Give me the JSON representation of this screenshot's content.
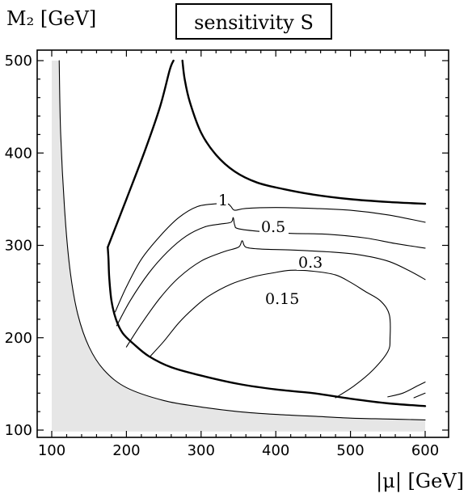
{
  "chart_data": {
    "type": "contour",
    "title": "sensitivity S",
    "ylabel": "M₂ [GeV]",
    "xlabel": "|μ| [GeV]",
    "xlim": [
      100,
      600
    ],
    "ylim": [
      100,
      500
    ],
    "xticks": [
      "100",
      "200",
      "300",
      "400",
      "500",
      "600"
    ],
    "yticks": [
      "100",
      "200",
      "300",
      "400",
      "500"
    ],
    "x_tick_values": [
      100,
      200,
      300,
      400,
      500,
      600
    ],
    "y_tick_values": [
      100,
      200,
      300,
      400,
      500
    ],
    "contour_labels": [
      "1",
      "0.5",
      "0.3",
      "0.15"
    ],
    "excluded_region_color": "#e6e6e6",
    "series": [
      {
        "role": "kinematic-boundary",
        "style": "thin",
        "points": [
          [
            110,
            500
          ],
          [
            112,
            420
          ],
          [
            118,
            330
          ],
          [
            125,
            270
          ],
          [
            135,
            225
          ],
          [
            150,
            190
          ],
          [
            170,
            165
          ],
          [
            200,
            146
          ],
          [
            250,
            132
          ],
          [
            300,
            125
          ],
          [
            350,
            120
          ],
          [
            400,
            117
          ],
          [
            450,
            115
          ],
          [
            500,
            113
          ],
          [
            550,
            112
          ],
          [
            600,
            111
          ]
        ]
      },
      {
        "role": "region-boundary",
        "style": "thick",
        "points": [
          [
            175,
            298
          ],
          [
            176,
            285
          ],
          [
            177,
            265
          ],
          [
            180,
            240
          ],
          [
            186,
            220
          ],
          [
            195,
            205
          ],
          [
            210,
            193
          ],
          [
            230,
            180
          ],
          [
            260,
            168
          ],
          [
            300,
            159
          ],
          [
            350,
            150
          ],
          [
            400,
            144
          ],
          [
            450,
            140
          ],
          [
            500,
            134
          ],
          [
            550,
            129
          ],
          [
            600,
            126
          ]
        ]
      },
      {
        "role": "region-boundary",
        "style": "thick",
        "points": [
          [
            175,
            298
          ],
          [
            200,
            350
          ],
          [
            225,
            403
          ],
          [
            245,
            450
          ],
          [
            258,
            490
          ],
          [
            263,
            500
          ]
        ]
      },
      {
        "role": "region-boundary",
        "style": "thick",
        "points": [
          [
            275,
            500
          ],
          [
            278,
            480
          ],
          [
            285,
            455
          ],
          [
            300,
            422
          ],
          [
            320,
            398
          ],
          [
            345,
            380
          ],
          [
            375,
            368
          ],
          [
            410,
            361
          ],
          [
            450,
            355
          ],
          [
            500,
            350
          ],
          [
            550,
            347
          ],
          [
            600,
            345
          ]
        ]
      },
      {
        "role": "contour",
        "label": "1",
        "points": [
          [
            185,
            228
          ],
          [
            200,
            255
          ],
          [
            220,
            285
          ],
          [
            245,
            310
          ],
          [
            270,
            330
          ],
          [
            295,
            342
          ],
          [
            320,
            345
          ],
          [
            335,
            345
          ],
          [
            340,
            342
          ],
          [
            345,
            338
          ],
          [
            360,
            340
          ],
          [
            400,
            341
          ],
          [
            450,
            340
          ],
          [
            500,
            338
          ],
          [
            550,
            333
          ],
          [
            600,
            325
          ]
        ]
      },
      {
        "role": "contour",
        "label": "0.5",
        "points": [
          [
            187,
            213
          ],
          [
            205,
            240
          ],
          [
            230,
            270
          ],
          [
            255,
            293
          ],
          [
            280,
            310
          ],
          [
            305,
            320
          ],
          [
            325,
            323
          ],
          [
            340,
            325
          ],
          [
            343,
            330
          ],
          [
            345,
            322
          ],
          [
            350,
            318
          ],
          [
            380,
            315
          ],
          [
            420,
            313
          ],
          [
            470,
            312
          ],
          [
            520,
            308
          ],
          [
            560,
            302
          ],
          [
            600,
            297
          ]
        ]
      },
      {
        "role": "contour",
        "label": "0.3",
        "points": [
          [
            200,
            190
          ],
          [
            220,
            215
          ],
          [
            245,
            243
          ],
          [
            270,
            265
          ],
          [
            300,
            283
          ],
          [
            330,
            293
          ],
          [
            350,
            298
          ],
          [
            355,
            305
          ],
          [
            360,
            298
          ],
          [
            380,
            296
          ],
          [
            420,
            295
          ],
          [
            470,
            293
          ],
          [
            510,
            290
          ],
          [
            550,
            283
          ],
          [
            580,
            272
          ],
          [
            600,
            263
          ]
        ]
      },
      {
        "role": "contour",
        "label": "0.15",
        "points": [
          [
            232,
            180
          ],
          [
            250,
            196
          ],
          [
            270,
            216
          ],
          [
            290,
            232
          ],
          [
            310,
            245
          ],
          [
            340,
            258
          ],
          [
            370,
            266
          ],
          [
            395,
            270
          ],
          [
            420,
            273
          ],
          [
            450,
            272
          ],
          [
            480,
            268
          ],
          [
            500,
            260
          ],
          [
            520,
            250
          ],
          [
            540,
            240
          ],
          [
            552,
            225
          ],
          [
            553,
            200
          ],
          [
            550,
            185
          ],
          [
            530,
            165
          ],
          [
            505,
            148
          ],
          [
            480,
            135
          ]
        ]
      },
      {
        "role": "contour",
        "points": [
          [
            550,
            136
          ],
          [
            570,
            140
          ],
          [
            590,
            148
          ],
          [
            600,
            152
          ]
        ]
      },
      {
        "role": "contour",
        "points": [
          [
            585,
            135
          ],
          [
            600,
            140
          ]
        ]
      }
    ]
  }
}
